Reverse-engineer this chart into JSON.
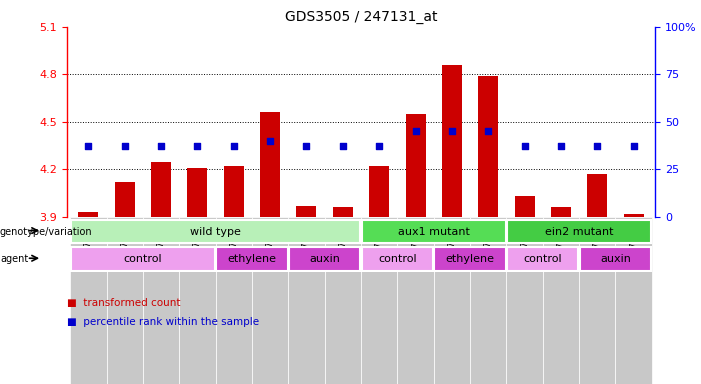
{
  "title": "GDS3505 / 247131_at",
  "samples": [
    "GSM179958",
    "GSM179959",
    "GSM179971",
    "GSM179972",
    "GSM179960",
    "GSM179961",
    "GSM179973",
    "GSM179974",
    "GSM179963",
    "GSM179967",
    "GSM179969",
    "GSM179970",
    "GSM179975",
    "GSM179976",
    "GSM179977",
    "GSM179978"
  ],
  "bar_values": [
    3.93,
    4.12,
    4.25,
    4.21,
    4.22,
    4.56,
    3.97,
    3.96,
    4.22,
    4.55,
    4.86,
    4.79,
    4.03,
    3.96,
    4.17,
    3.92
  ],
  "dot_yvals": [
    4.35,
    4.35,
    4.35,
    4.35,
    4.35,
    4.38,
    4.35,
    4.35,
    4.35,
    4.44,
    4.44,
    4.44,
    4.35,
    4.35,
    4.35,
    4.35
  ],
  "ymin": 3.9,
  "ymax": 5.1,
  "yticks": [
    3.9,
    4.2,
    4.5,
    4.8,
    5.1
  ],
  "y2min": 0,
  "y2max": 100,
  "y2ticks": [
    0,
    25,
    50,
    75,
    100
  ],
  "bar_color": "#cc0000",
  "dot_color": "#0000cc",
  "bar_bg_color": "#c8c8c8",
  "genotype_groups": [
    {
      "label": "wild type",
      "start": 0,
      "end": 7,
      "color": "#b8f0b8"
    },
    {
      "label": "aux1 mutant",
      "start": 8,
      "end": 11,
      "color": "#55dd55"
    },
    {
      "label": "ein2 mutant",
      "start": 12,
      "end": 15,
      "color": "#44cc44"
    }
  ],
  "agent_groups": [
    {
      "label": "control",
      "start": 0,
      "end": 3,
      "color": "#eea0ee"
    },
    {
      "label": "ethylene",
      "start": 4,
      "end": 5,
      "color": "#cc44cc"
    },
    {
      "label": "auxin",
      "start": 6,
      "end": 7,
      "color": "#cc44cc"
    },
    {
      "label": "control",
      "start": 8,
      "end": 9,
      "color": "#eea0ee"
    },
    {
      "label": "ethylene",
      "start": 10,
      "end": 11,
      "color": "#cc44cc"
    },
    {
      "label": "control",
      "start": 12,
      "end": 13,
      "color": "#eea0ee"
    },
    {
      "label": "auxin",
      "start": 14,
      "end": 15,
      "color": "#cc44cc"
    }
  ],
  "legend_items": [
    {
      "label": "transformed count",
      "color": "#cc0000"
    },
    {
      "label": "percentile rank within the sample",
      "color": "#0000cc"
    }
  ]
}
